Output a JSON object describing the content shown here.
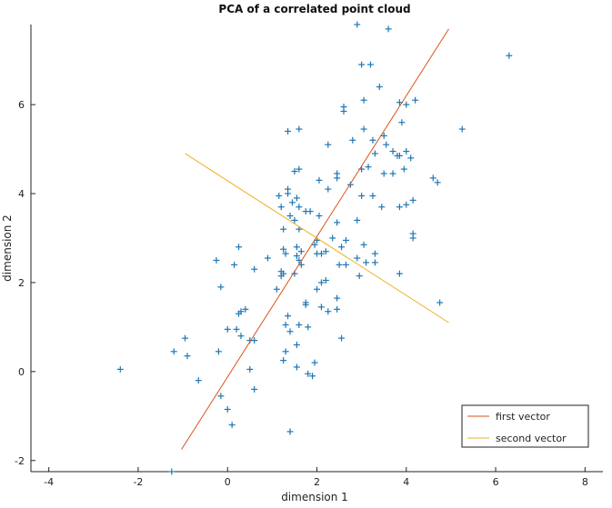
{
  "chart_data": {
    "type": "scatter",
    "title": "PCA of a correlated point cloud",
    "xlabel": "dimension 1",
    "ylabel": "dimension 2",
    "xlim": [
      -4.4,
      8.4
    ],
    "ylim": [
      -2.25,
      7.8
    ],
    "x_ticks": [
      -4,
      -2,
      0,
      2,
      4,
      6,
      8
    ],
    "y_ticks": [
      -2,
      0,
      2,
      4,
      6
    ],
    "grid": false,
    "legend_position": "bottom-right",
    "points": {
      "marker": "+",
      "color": "#1f77b4",
      "values": [
        [
          2.9,
          7.8
        ],
        [
          3.6,
          7.7
        ],
        [
          6.3,
          7.1
        ],
        [
          3.0,
          6.9
        ],
        [
          3.2,
          6.9
        ],
        [
          3.4,
          6.4
        ],
        [
          3.05,
          6.1
        ],
        [
          4.2,
          6.1
        ],
        [
          3.85,
          6.05
        ],
        [
          4.0,
          6.0
        ],
        [
          2.6,
          5.95
        ],
        [
          2.6,
          5.85
        ],
        [
          3.9,
          5.6
        ],
        [
          5.25,
          5.45
        ],
        [
          1.6,
          5.45
        ],
        [
          1.35,
          5.4
        ],
        [
          3.05,
          5.45
        ],
        [
          3.5,
          5.3
        ],
        [
          3.25,
          5.2
        ],
        [
          2.8,
          5.2
        ],
        [
          2.25,
          5.1
        ],
        [
          3.55,
          5.1
        ],
        [
          3.7,
          4.95
        ],
        [
          4.0,
          4.95
        ],
        [
          3.85,
          4.85
        ],
        [
          3.8,
          4.85
        ],
        [
          3.3,
          4.9
        ],
        [
          4.1,
          4.8
        ],
        [
          3.15,
          4.6
        ],
        [
          3.0,
          4.55
        ],
        [
          1.6,
          4.55
        ],
        [
          1.5,
          4.5
        ],
        [
          3.5,
          4.45
        ],
        [
          3.7,
          4.45
        ],
        [
          3.95,
          4.55
        ],
        [
          2.45,
          4.45
        ],
        [
          2.45,
          4.35
        ],
        [
          4.6,
          4.35
        ],
        [
          4.7,
          4.25
        ],
        [
          2.05,
          4.3
        ],
        [
          2.75,
          4.2
        ],
        [
          2.25,
          4.1
        ],
        [
          1.35,
          4.1
        ],
        [
          1.35,
          4.0
        ],
        [
          1.15,
          3.95
        ],
        [
          1.55,
          3.9
        ],
        [
          3.0,
          3.95
        ],
        [
          3.25,
          3.95
        ],
        [
          4.15,
          3.85
        ],
        [
          1.45,
          3.8
        ],
        [
          1.6,
          3.7
        ],
        [
          1.2,
          3.7
        ],
        [
          3.85,
          3.7
        ],
        [
          3.45,
          3.7
        ],
        [
          4.0,
          3.75
        ],
        [
          1.75,
          3.6
        ],
        [
          1.85,
          3.6
        ],
        [
          1.4,
          3.5
        ],
        [
          2.05,
          3.5
        ],
        [
          1.5,
          3.4
        ],
        [
          2.45,
          3.35
        ],
        [
          2.9,
          3.4
        ],
        [
          1.6,
          3.2
        ],
        [
          1.25,
          3.2
        ],
        [
          4.15,
          3.1
        ],
        [
          4.15,
          3.0
        ],
        [
          2.35,
          3.0
        ],
        [
          2.0,
          2.95
        ],
        [
          2.65,
          2.95
        ],
        [
          2.55,
          2.8
        ],
        [
          1.25,
          2.75
        ],
        [
          1.95,
          2.85
        ],
        [
          2.2,
          2.7
        ],
        [
          2.1,
          2.65
        ],
        [
          1.55,
          2.8
        ],
        [
          1.65,
          2.7
        ],
        [
          3.05,
          2.85
        ],
        [
          1.3,
          2.65
        ],
        [
          0.25,
          2.8
        ],
        [
          1.55,
          2.6
        ],
        [
          2.0,
          2.65
        ],
        [
          3.3,
          2.65
        ],
        [
          2.9,
          2.55
        ],
        [
          0.9,
          2.55
        ],
        [
          -0.25,
          2.5
        ],
        [
          1.6,
          2.5
        ],
        [
          2.5,
          2.4
        ],
        [
          3.3,
          2.45
        ],
        [
          3.1,
          2.45
        ],
        [
          2.65,
          2.4
        ],
        [
          0.15,
          2.4
        ],
        [
          1.65,
          2.4
        ],
        [
          0.6,
          2.3
        ],
        [
          1.2,
          2.25
        ],
        [
          1.25,
          2.2
        ],
        [
          1.5,
          2.2
        ],
        [
          3.85,
          2.2
        ],
        [
          1.2,
          2.15
        ],
        [
          2.95,
          2.15
        ],
        [
          2.2,
          2.05
        ],
        [
          2.1,
          2.0
        ],
        [
          1.1,
          1.85
        ],
        [
          -0.15,
          1.9
        ],
        [
          2.0,
          1.85
        ],
        [
          2.45,
          1.65
        ],
        [
          4.75,
          1.55
        ],
        [
          1.75,
          1.55
        ],
        [
          1.75,
          1.5
        ],
        [
          2.1,
          1.45
        ],
        [
          2.25,
          1.35
        ],
        [
          2.45,
          1.4
        ],
        [
          0.4,
          1.4
        ],
        [
          0.3,
          1.35
        ],
        [
          0.25,
          1.3
        ],
        [
          1.35,
          1.25
        ],
        [
          1.3,
          1.05
        ],
        [
          1.6,
          1.05
        ],
        [
          1.8,
          1.0
        ],
        [
          0.0,
          0.95
        ],
        [
          0.2,
          0.95
        ],
        [
          1.4,
          0.9
        ],
        [
          0.3,
          0.8
        ],
        [
          2.55,
          0.75
        ],
        [
          -0.95,
          0.75
        ],
        [
          0.5,
          0.7
        ],
        [
          0.6,
          0.7
        ],
        [
          1.55,
          0.6
        ],
        [
          -1.2,
          0.45
        ],
        [
          1.3,
          0.45
        ],
        [
          -0.2,
          0.45
        ],
        [
          -0.9,
          0.35
        ],
        [
          1.25,
          0.25
        ],
        [
          1.95,
          0.2
        ],
        [
          1.55,
          0.1
        ],
        [
          0.5,
          0.05
        ],
        [
          -2.4,
          0.05
        ],
        [
          1.8,
          -0.05
        ],
        [
          1.9,
          -0.1
        ],
        [
          -0.65,
          -0.2
        ],
        [
          0.6,
          -0.4
        ],
        [
          -0.15,
          -0.55
        ],
        [
          0.0,
          -0.85
        ],
        [
          0.1,
          -1.2
        ],
        [
          1.4,
          -1.35
        ],
        [
          -1.25,
          -2.25
        ]
      ]
    },
    "series": [
      {
        "name": "first vector",
        "color": "#d95319",
        "x": [
          -1.03,
          4.95
        ],
        "y": [
          -1.75,
          7.7
        ]
      },
      {
        "name": "second vector",
        "color": "#edb120",
        "x": [
          -0.95,
          4.95
        ],
        "y": [
          4.9,
          1.1
        ]
      }
    ]
  }
}
